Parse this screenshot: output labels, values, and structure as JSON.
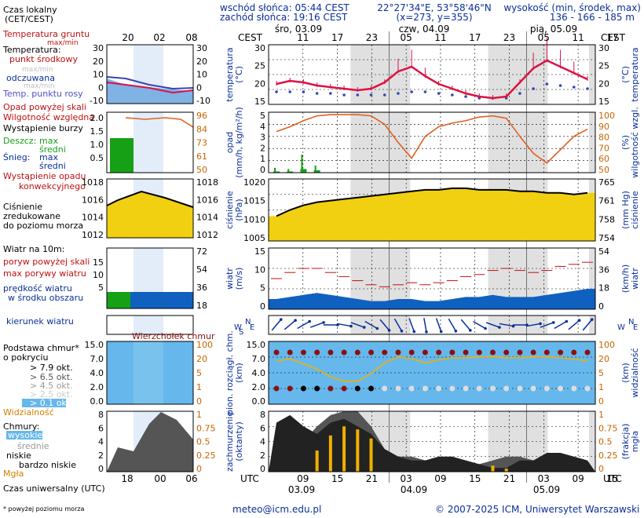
{
  "header": {
    "sunrise": "wschód słońca: 05:44 CEST",
    "sunset": "zachód słońca: 19:16 CEST",
    "coords": "22°27'34\"E, 53°58'46\"N",
    "grid": "(x=273, y=355)",
    "elev_label": "wysokość (min, środek, max)",
    "elev_values": "136 - 166 - 185 m",
    "cest_left": "CEST",
    "cest_right": "CEST",
    "utc_left": "UTC",
    "utc_right": "UTC"
  },
  "days": [
    {
      "label": "śro, 03.09",
      "utc_date": "03.09"
    },
    {
      "label": "czw, 04.09",
      "utc_date": "04.09"
    },
    {
      "label": "pią, 05.09",
      "utc_date": "05.09"
    }
  ],
  "time_axis": {
    "top_cest_ticks": [
      "11",
      "17",
      "23",
      "05",
      "11",
      "17",
      "23",
      "05",
      "11",
      "17"
    ],
    "bottom_utc_ticks": [
      "09",
      "15",
      "21",
      "03",
      "09",
      "15",
      "21",
      "03",
      "09",
      "15"
    ]
  },
  "legend": {
    "local_time": "Czas lokalny",
    "local_time_sub": "(CET/CEST)",
    "legend_top_ticks": [
      "20",
      "02",
      "08"
    ],
    "ground_temp": "Temperatura gruntu",
    "ground_temp_sub": "max/min",
    "temp": "Temperatura:",
    "temp_mid": "punkt środkowy",
    "temp_maxmin": "max/min",
    "perceived": "odczuwana",
    "perceived_maxmin": "max/min",
    "dewpoint": "Temp. punktu rosy",
    "precip_over": "Opad powyżej skali",
    "humidity": "Wilgotność względna",
    "storm": "Wystąpienie burzy",
    "rain_label": "Deszcz:",
    "rain_max": "max",
    "rain_mean": "średni",
    "snow_label": "Śnieg:",
    "snow_max": "max",
    "snow_mean": "średni",
    "conv": "Wystąpienie opadu",
    "conv2": "konwekcyjnego",
    "pressure1": "Ciśnienie",
    "pressure2": "zredukowane",
    "pressure3": "do poziomu morza",
    "wind_title": "Wiatr na 10m:",
    "gust_over": "poryw powyżej skali",
    "gust_max": "max porywy wiatru",
    "wind_mean1": "prędkość wiatru",
    "wind_mean2": "w środku obszaru",
    "wind_dir": "kierunek wiatru",
    "cloud_base_star": "Wierzchołek chmur",
    "cloud_base": "Podstawa chmur*",
    "cloud_base2": "o pokryciu",
    "okt_79": "> 7.9 okt.",
    "okt_65": "> 6.5 okt.",
    "okt_45": "> 4.5 okt.",
    "okt_25": "> 2.5 okt.",
    "okt_01": "> 0.1 okt.",
    "visibility": "Widzialność",
    "clouds": "Chmury:",
    "cl_high": "wysokie",
    "cl_mid": "średnie",
    "cl_low": "niskie",
    "cl_vlow": "bardzo niskie",
    "fog": "Mgła",
    "utc_caption": "Czas uniwersalny (UTC)",
    "legend_utc_ticks": [
      "18",
      "00",
      "06"
    ],
    "footnote": "* powyżej poziomu morza"
  },
  "panels": {
    "temp": {
      "ylabel_left": "temperatura",
      "ylabel_left2": "(°C)",
      "ylabel_right": "temperatura",
      "ylabel_right2": "(°C)",
      "ticks": [
        "30",
        "25",
        "20",
        "15"
      ]
    },
    "precip": {
      "ylabel_left": "opad",
      "ylabel_left2": "(mm/h, kg/m²/h)",
      "ylabel_right": "wilgotność wzgl.",
      "ylabel_right2": "(%)",
      "ticks_left": [
        "5",
        "4",
        "3",
        "2",
        "1",
        "0"
      ],
      "ticks_right": [
        "100",
        "90",
        "80",
        "70",
        "60",
        "50"
      ]
    },
    "pressure": {
      "ylabel_left": "ciśnienie",
      "ylabel_left2": "(hPa)",
      "ylabel_right": "ciśnienie",
      "ylabel_right2": "(mm Hg)",
      "ticks_left": [
        "1020",
        "1015",
        "1010",
        "1005"
      ],
      "ticks_right": [
        "765",
        "761",
        "758",
        "754"
      ]
    },
    "wind": {
      "ylabel_left": "wiatr",
      "ylabel_left2": "(m/s)",
      "ylabel_right": "wiatr",
      "ylabel_right2": "(km/h)",
      "ticks_left": [
        "15",
        "10",
        "5",
        "0"
      ],
      "ticks_right": [
        "54",
        "36",
        "18",
        "0"
      ]
    },
    "dir": {
      "n": "N",
      "w": "W",
      "s": "S",
      "e": "E"
    },
    "cloud": {
      "ylabel_left": "pion. rozciągł. chm.",
      "ylabel_left2": "(km)",
      "ylabel_right": "widzialność",
      "ylabel_right2": "(km)",
      "ticks_left": [
        "15.0",
        "7.0",
        "4.0",
        "2.0",
        "0.0"
      ],
      "ticks_right": [
        "100",
        "20",
        "5",
        "1",
        "0"
      ]
    },
    "cover": {
      "ylabel_left": "zachmurzenie",
      "ylabel_left2": "(oktanty)",
      "ylabel_right": "mgła",
      "ylabel_right2": "(frakcja)",
      "ticks_left": [
        "8",
        "6",
        "4",
        "2",
        "0"
      ],
      "ticks_right": [
        "1",
        "0.75",
        "0.5",
        "0.25",
        "0"
      ]
    }
  },
  "legend_ticks": {
    "temp_left": [
      "30",
      "20",
      "10",
      "0",
      "-10"
    ],
    "temp_right": [
      "30",
      "20",
      "10",
      "0",
      "-10"
    ],
    "precip_left": [
      "2.0",
      "1.5",
      "1.0",
      "0.5"
    ],
    "precip_right": [
      "96",
      "84",
      "73",
      "61",
      "50"
    ],
    "press_left": [
      "1018",
      "1016",
      "1014",
      "1012"
    ],
    "press_right": [
      "1018",
      "1016",
      "1014",
      "1012"
    ],
    "wind_left": [
      "15",
      "10",
      "5"
    ],
    "wind_right": [
      "72",
      "54",
      "36",
      "18"
    ],
    "cloud_left": [
      "15.0",
      "7.0",
      "4.0",
      "2.0",
      "0.0"
    ],
    "cloud_right": [
      "100",
      "20",
      "5",
      "1",
      "0"
    ],
    "cover_left": [
      "8",
      "6",
      "4",
      "2",
      "0"
    ],
    "cover_right": [
      "1",
      "0.75",
      "0.5",
      "0.25",
      "0"
    ]
  },
  "footer": {
    "email": "meteo@icm.edu.pl",
    "copyright": "© 2007-2025 ICM, Uniwersytet Warszawski"
  },
  "colors": {
    "temp_line": "#dd1144",
    "dew": "#3344bb",
    "humidity": "#e06020",
    "pressure_fill": "#f0d010",
    "pressure_hi": "#f0a000",
    "wind_fill": "#1060c0",
    "cloud_bg": "#66b8ec",
    "fog": "#f0b000",
    "night": "#e0e0e0"
  },
  "chart_data": {
    "type": "line",
    "x_start_utc": "2025-09-03T06:00",
    "x_step_hours": 3,
    "temperature": [
      18.5,
      19.5,
      19,
      18,
      17.5,
      17,
      16.5,
      17,
      19,
      22.5,
      24,
      21,
      18.5,
      17,
      15.5,
      14.5,
      14,
      14.5,
      19,
      23.5,
      26,
      24,
      22,
      20
    ],
    "dew_point": [
      16,
      16,
      16,
      15.5,
      15.5,
      15,
      15,
      15,
      15,
      15.5,
      16,
      16,
      15.5,
      15,
      14.5,
      14,
      14,
      14,
      15.5,
      17,
      18.5,
      18,
      17.5,
      17
    ],
    "humidity": [
      84,
      88,
      93,
      97,
      98,
      98,
      98,
      97,
      90,
      75,
      62,
      80,
      88,
      91,
      93,
      96,
      97,
      95,
      80,
      66,
      58,
      69,
      80,
      86
    ],
    "pressure_hPa": [
      1009,
      1011,
      1012.5,
      1013.5,
      1014,
      1014.5,
      1015,
      1015.5,
      1016,
      1016.5,
      1017,
      1017.5,
      1017.5,
      1018,
      1018,
      1017.5,
      1017.5,
      1017.5,
      1017,
      1017,
      1016.5,
      1016.5,
      1016,
      1016.5
    ],
    "wind_mean": [
      2.5,
      3,
      3.5,
      4,
      3.5,
      3,
      2.5,
      2,
      2,
      2.5,
      2.5,
      2,
      2,
      2.5,
      3,
      3,
      3.5,
      3,
      3,
      3,
      3.5,
      4,
      4.5,
      5
    ],
    "wind_gust": [
      7.5,
      9,
      10,
      10,
      9,
      8,
      7,
      6,
      5.5,
      6,
      6.5,
      6,
      6.5,
      7,
      8,
      8.5,
      9.5,
      10,
      9.5,
      9,
      9.5,
      10.5,
      11,
      11.5
    ],
    "precip_max": [
      0.4,
      0.3,
      1.5,
      0.6,
      0,
      0,
      0,
      0,
      0,
      0,
      0,
      0,
      0,
      0,
      0,
      0,
      0,
      0,
      0,
      0,
      0,
      0,
      0,
      0
    ],
    "precip_mean": [
      0.1,
      0.1,
      0.3,
      0.2,
      0,
      0,
      0,
      0,
      0,
      0,
      0,
      0,
      0,
      0,
      0,
      0,
      0,
      0,
      0,
      0,
      0,
      0,
      0,
      0
    ],
    "wind_dir_deg": [
      220,
      230,
      240,
      250,
      270,
      280,
      290,
      300,
      320,
      330,
      340,
      350,
      340,
      330,
      320,
      300,
      290,
      280,
      270,
      260,
      250,
      240,
      230,
      220
    ],
    "visibility_km": [
      12,
      16,
      9,
      5,
      2,
      1.2,
      1.2,
      3,
      10,
      20,
      16,
      10,
      14,
      18,
      18,
      20,
      20,
      18,
      18,
      20,
      20,
      18,
      16,
      12
    ],
    "cloud_low_okt": [
      6.5,
      7.5,
      6,
      5,
      6.5,
      7,
      6,
      5,
      3,
      2,
      1.5,
      1.5,
      2,
      2,
      1.5,
      1,
      0.5,
      0.5,
      1.5,
      1.5,
      2.5,
      2.5,
      2,
      1.5
    ],
    "cloud_high_okt": [
      1,
      2,
      4,
      6,
      7.5,
      8,
      8,
      6,
      3,
      2,
      2,
      1.5,
      1,
      0.5,
      0.5,
      1,
      1.5,
      2,
      2,
      1.5,
      1,
      1,
      0.5,
      0.5
    ],
    "fog_fraction": [
      0,
      0,
      0,
      0.35,
      0.6,
      0.75,
      0.7,
      0.55,
      0,
      0,
      0,
      0,
      0,
      0,
      0,
      0,
      0.1,
      0.05,
      0,
      0,
      0,
      0,
      0,
      0
    ]
  }
}
